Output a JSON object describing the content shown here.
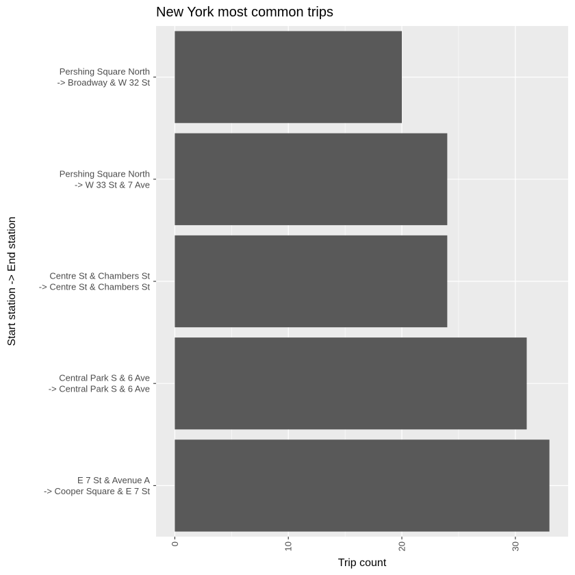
{
  "chart_data": {
    "type": "bar",
    "orientation": "horizontal",
    "title": "New York most common trips",
    "xlabel": "Trip count",
    "ylabel": "Start station -> End station",
    "categories": [
      [
        "Pershing Square North",
        "-> Broadway & W 32 St"
      ],
      [
        "Pershing Square North",
        "-> W 33 St & 7 Ave"
      ],
      [
        "Centre St & Chambers St",
        "-> Centre St & Chambers St"
      ],
      [
        "Central Park S & 6 Ave",
        "-> Central Park S & 6 Ave"
      ],
      [
        "E 7 St & Avenue A",
        "-> Cooper Square & E 7 St"
      ]
    ],
    "values": [
      20,
      24,
      24,
      31,
      33
    ],
    "xlim": [
      -1.65,
      34.65
    ],
    "xticks": [
      0,
      10,
      20,
      30
    ],
    "grid": true,
    "colors": {
      "bar": "#595959",
      "panel": "#ebebeb",
      "grid": "#ffffff"
    }
  }
}
